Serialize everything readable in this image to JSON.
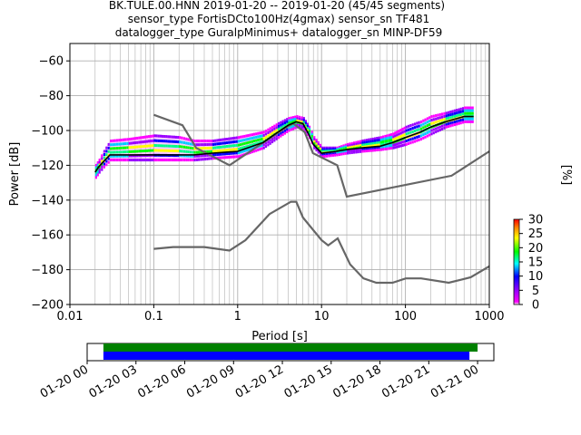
{
  "title": {
    "line1": "BK.TULE.00.HNN   2019-01-20 -- 2019-01-20  (45/45 segments)",
    "line2": "sensor_type FortisDCto100Hz(4gmax) sensor_sn TF481",
    "line3": "datalogger_type GuralpMinimus+ datalogger_sn MINP-DF59"
  },
  "chart_data": [
    {
      "type": "heatmap",
      "xlabel": "Period [s]",
      "ylabel": "Power [dB]",
      "x_scale": "log",
      "xlim": [
        0.01,
        1000
      ],
      "ylim": [
        -200,
        -50
      ],
      "grid": true,
      "x_ticks": [
        {
          "value": 0.01,
          "label": "0.01"
        },
        {
          "value": 0.1,
          "label": "0.1"
        },
        {
          "value": 1,
          "label": "1"
        },
        {
          "value": 10,
          "label": "10"
        },
        {
          "value": 100,
          "label": "100"
        },
        {
          "value": 1000,
          "label": "1000"
        }
      ],
      "y_ticks": [
        {
          "value": -60,
          "label": "−60"
        },
        {
          "value": -80,
          "label": "−80"
        },
        {
          "value": -100,
          "label": "−100"
        },
        {
          "value": -120,
          "label": "−120"
        },
        {
          "value": -140,
          "label": "−140"
        },
        {
          "value": -160,
          "label": "−160"
        },
        {
          "value": -180,
          "label": "−180"
        },
        {
          "value": -200,
          "label": "−200"
        }
      ],
      "colorbar": {
        "label": "[%]",
        "range": [
          0,
          30
        ],
        "ticks": [
          {
            "value": 0,
            "label": "0"
          },
          {
            "value": 5,
            "label": "5"
          },
          {
            "value": 10,
            "label": "10"
          },
          {
            "value": 15,
            "label": "15"
          },
          {
            "value": 20,
            "label": "20"
          },
          {
            "value": 25,
            "label": "25"
          },
          {
            "value": 30,
            "label": "30"
          }
        ]
      },
      "psd_density_band": {
        "period": [
          0.02,
          0.022,
          0.025,
          0.03,
          0.05,
          0.1,
          0.2,
          0.3,
          0.5,
          1,
          2,
          3,
          4,
          5,
          6,
          7,
          8,
          10,
          15,
          20,
          30,
          50,
          70,
          100,
          150,
          200,
          300,
          500,
          650
        ],
        "mean_db": [
          -124,
          -121,
          -118,
          -114,
          -114,
          -114,
          -114,
          -114,
          -113,
          -112,
          -107,
          -101,
          -97,
          -95,
          -96,
          -102,
          -108,
          -113,
          -112,
          -111,
          -110,
          -109,
          -107,
          -104,
          -101,
          -98,
          -95,
          -92,
          -92
        ],
        "upper_db": [
          -120,
          -117,
          -112,
          -106,
          -105,
          -103,
          -104,
          -106,
          -106,
          -104,
          -101,
          -96,
          -93,
          -92,
          -93,
          -98,
          -104,
          -110,
          -110,
          -108,
          -106,
          -104,
          -102,
          -98,
          -95,
          -92,
          -90,
          -87,
          -87
        ],
        "lower_db": [
          -127,
          -124,
          -121,
          -117,
          -117,
          -117,
          -117,
          -117,
          -116,
          -115,
          -110,
          -104,
          -100,
          -98,
          -99,
          -104,
          -110,
          -115,
          -114,
          -113,
          -112,
          -111,
          -110,
          -108,
          -105,
          -102,
          -98,
          -95,
          -95
        ]
      },
      "mean_curve": {
        "period": [
          0.02,
          0.022,
          0.025,
          0.03,
          0.05,
          0.1,
          0.2,
          0.3,
          0.5,
          1,
          2,
          3,
          4,
          5,
          6,
          7,
          8,
          10,
          15,
          20,
          30,
          50,
          70,
          100,
          150,
          200,
          300,
          500,
          650
        ],
        "db": [
          -124,
          -121,
          -118,
          -114,
          -114,
          -114,
          -114,
          -114,
          -113,
          -112,
          -107,
          -101,
          -97,
          -95,
          -96,
          -102,
          -108,
          -113,
          -112,
          -111,
          -110,
          -109,
          -107,
          -104,
          -101,
          -98,
          -95,
          -92,
          -92
        ]
      },
      "noise_models": [
        {
          "period": [
            0.1,
            0.22,
            0.32,
            0.8,
            3.8,
            4.6,
            6.3,
            7.9,
            15.4,
            20,
            354.8,
            1000
          ],
          "db": [
            -91,
            -97,
            -110,
            -120,
            -98,
            -96,
            -101,
            -113,
            -120,
            -138,
            -126,
            -112
          ]
        },
        {
          "period": [
            0.1,
            0.17,
            0.4,
            0.8,
            1.24,
            2.4,
            4.3,
            5,
            6,
            10,
            12,
            15.6,
            21.9,
            31.6,
            45,
            70,
            101,
            154,
            328,
            600,
            1000
          ],
          "db": [
            -168,
            -167,
            -167,
            -169,
            -163,
            -148,
            -141,
            -141,
            -150,
            -163,
            -166,
            -162,
            -177,
            -185,
            -187.5,
            -187.5,
            -185,
            -185,
            -187.5,
            -184.4,
            -178
          ]
        }
      ]
    },
    {
      "type": "timeline",
      "xlim": [
        "2019-01-20 00:00",
        "2019-01-21 01:00"
      ],
      "tick_labels": [
        "01-20 00",
        "01-20 03",
        "01-20 06",
        "01-20 09",
        "01-20 12",
        "01-20 15",
        "01-20 18",
        "01-20 21",
        "01-21 00"
      ],
      "bars": [
        {
          "start": "2019-01-20 01:00",
          "end": "2019-01-21 00:00",
          "color": "#008000"
        },
        {
          "start": "2019-01-20 01:00",
          "end": "2019-01-20 23:30",
          "color": "#0000ff"
        }
      ]
    }
  ]
}
